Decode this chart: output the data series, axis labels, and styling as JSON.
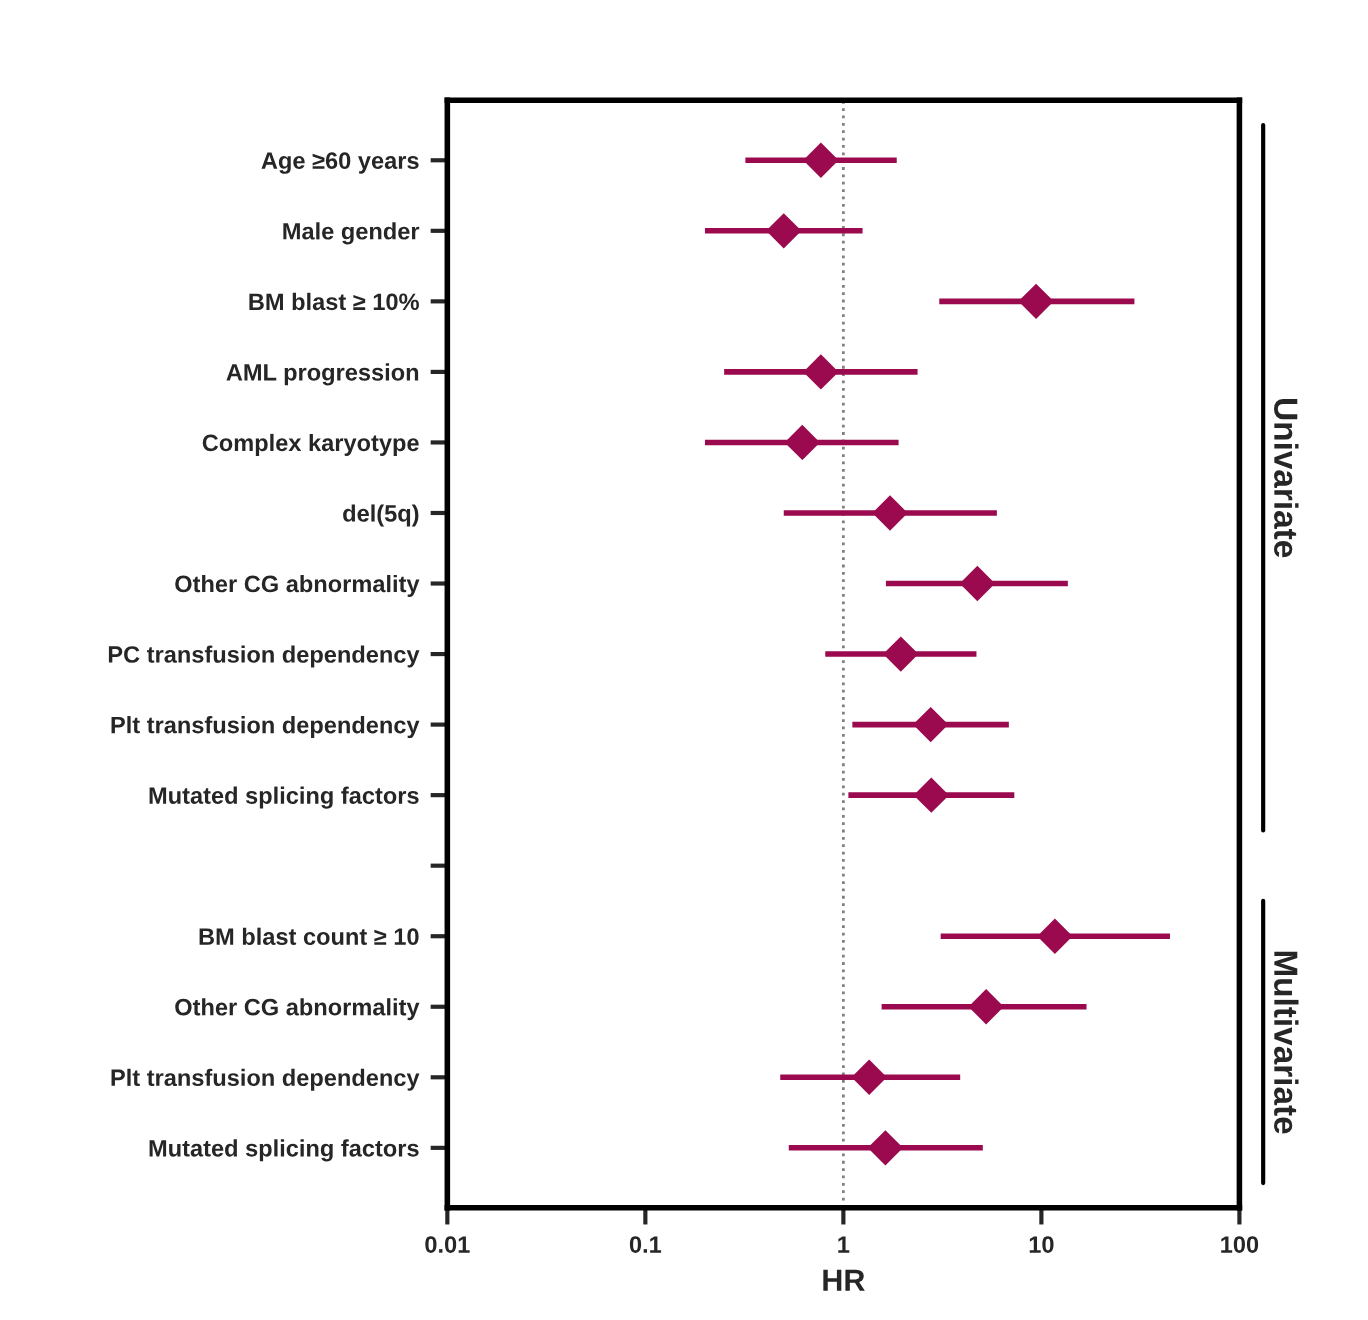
{
  "chart_data": {
    "type": "scatter",
    "orientation": "horizontal",
    "categories": [
      "Age ≥60 years",
      "Male gender",
      "BM blast ≥ 10%",
      "AML progression",
      "Complex karyotype",
      "del(5q)",
      "Other CG abnormality",
      "PC transfusion dependency",
      "Plt transfusion dependency",
      "Mutated splicing factors",
      null,
      "BM blast count ≥ 10",
      "Other CG abnormality",
      "Plt transfusion dependency",
      "Mutated splicing factors"
    ],
    "series": [
      {
        "color": "#9b0a4e",
        "values": [
          0.77,
          0.5,
          9.4,
          0.77,
          0.62,
          1.72,
          4.75,
          1.95,
          2.76,
          2.78,
          null,
          11.7,
          5.26,
          1.35,
          1.63
        ],
        "errors": [
          [
            0.32,
            1.86
          ],
          [
            0.2,
            1.25
          ],
          [
            3.05,
            29.5
          ],
          [
            0.25,
            2.37
          ],
          [
            0.2,
            1.9
          ],
          [
            0.5,
            5.96
          ],
          [
            1.64,
            13.6
          ],
          [
            0.81,
            4.7
          ],
          [
            1.11,
            6.85
          ],
          [
            1.06,
            7.3
          ],
          null,
          [
            3.1,
            44.6
          ],
          [
            1.56,
            16.9
          ],
          [
            0.48,
            3.89
          ],
          [
            0.53,
            5.06
          ]
        ]
      }
    ],
    "xlabel": "HR",
    "log": "x",
    "xlim": [
      0.01,
      100
    ],
    "xticks": [
      0.01,
      0.1,
      1,
      10,
      100
    ],
    "marker": "diamond",
    "grid": false,
    "ref_lines": [
      {
        "axis": "x",
        "value": 1,
        "color": "#808080",
        "line_style": "dotted"
      }
    ],
    "annotations": [
      "Univariate",
      "Multivariate"
    ]
  }
}
